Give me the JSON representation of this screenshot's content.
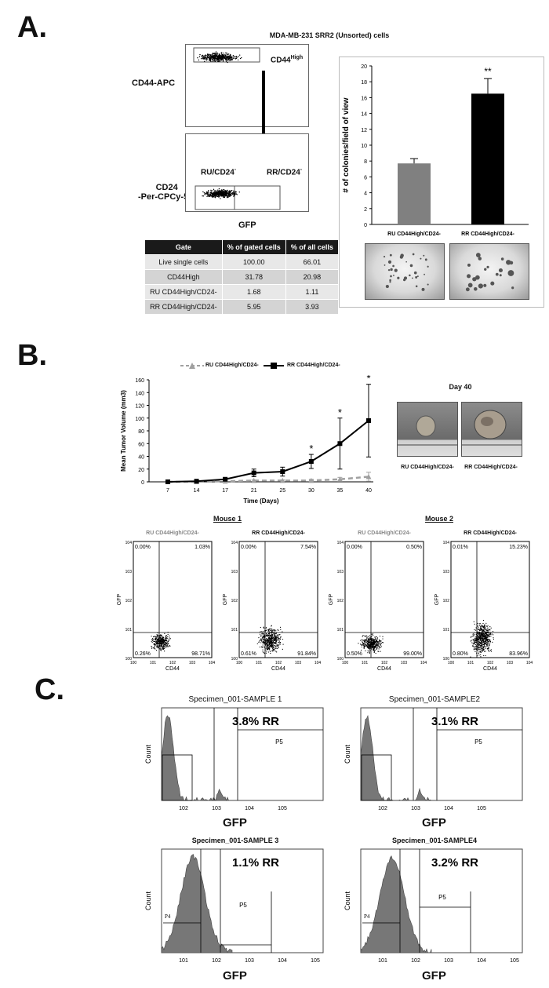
{
  "panelA": {
    "label": "A.",
    "title": "MDA-MB-231 SRR2 (Unsorted) cells",
    "cd44_axis": "CD44-APC",
    "cd24_axis_line1": "CD24",
    "cd24_axis_line2": "-Per-CPCy-5.5",
    "gate_cd44": "CD44",
    "gate_cd44_sup": "High",
    "gate_ru": "RU/CD24",
    "gate_rr": "RR/CD24",
    "minus": "-",
    "gfp": "GFP",
    "table": {
      "headers": [
        "Gate",
        "% of gated cells",
        "% of all cells"
      ],
      "rows": [
        [
          "Live single cells",
          "100.00",
          "66.01"
        ],
        [
          "CD44High",
          "31.78",
          "20.98"
        ],
        [
          "RU CD44High/CD24-",
          "1.68",
          "1.11"
        ],
        [
          "RR CD44High/CD24-",
          "5.95",
          "3.93"
        ]
      ]
    },
    "bar_ylabel": "# of colonies/field of view",
    "bar_sig": "**",
    "bar_xlabels": [
      "RU CD44High/CD24-",
      "RR CD44High/CD24-"
    ]
  },
  "panelB": {
    "label": "B.",
    "legend_ru": "RU CD44High/CD24-",
    "legend_rr": "RR CD44High/CD24-",
    "ylabel": "Mean Tumor Volume (mm3)",
    "xlabel": "Time (Days)",
    "day_label": "Day 40",
    "photo_ru": "RU CD44High/CD24-",
    "photo_rr": "RR CD44High/CD24-",
    "mouse1": "Mouse 1",
    "mouse2": "Mouse 2",
    "flow": [
      {
        "title": "RU CD44High/CD24-",
        "ul": "0.00%",
        "ur": "1.03%",
        "ll": "0.26%",
        "lr": "98.71%"
      },
      {
        "title": "RR CD44High/CD24-",
        "ul": "0.00%",
        "ur": "7.54%",
        "ll": "0.61%",
        "lr": "91.84%"
      },
      {
        "title": "RU CD44High/CD24-",
        "ul": "0.00%",
        "ur": "0.50%",
        "ll": "0.50%",
        "lr": "99.00%"
      },
      {
        "title": "RR CD44High/CD24-",
        "ul": "0.01%",
        "ur": "15.23%",
        "ll": "0.80%",
        "lr": "83.96%"
      }
    ],
    "flow_xlabel": "CD44",
    "flow_ylabel": "GFP"
  },
  "panelC": {
    "label": "C.",
    "histos": [
      {
        "title": "Specimen_001-SAMPLE 1",
        "pct": "3.8% RR",
        "gate": "P5"
      },
      {
        "title": "Specimen_001-SAMPLE2",
        "pct": "3.1% RR",
        "gate": "P5"
      },
      {
        "title": "Specimen_001-SAMPLE 3",
        "pct": "1.1% RR",
        "gate": "P5"
      },
      {
        "title": "Specimen_001-SAMPLE4",
        "pct": "3.2% RR",
        "gate": "P5"
      }
    ],
    "p4": "P4",
    "count": "Count",
    "gfp": "GFP"
  },
  "chart_data": [
    {
      "type": "bar",
      "categories": [
        "RU CD44High/CD24-",
        "RR CD44High/CD24-"
      ],
      "values": [
        7.7,
        16.5
      ],
      "errors": [
        0.6,
        1.9
      ],
      "colors": [
        "#808080",
        "#000000"
      ],
      "ylabel": "# of colonies/field of view",
      "ylim": [
        0,
        20
      ],
      "yticks": [
        0,
        2,
        4,
        6,
        8,
        10,
        12,
        14,
        16,
        18,
        20
      ]
    },
    {
      "type": "line",
      "x": [
        7,
        14,
        17,
        21,
        25,
        30,
        35,
        40
      ],
      "series": [
        {
          "name": "RU CD44High/CD24-",
          "values": [
            0,
            0,
            1,
            2,
            2,
            2,
            4,
            8
          ],
          "errors": [
            0,
            0,
            1,
            1,
            1,
            2,
            3,
            7
          ],
          "color": "#a0a0a0",
          "dashed": true
        },
        {
          "name": "RR CD44High/CD24-",
          "values": [
            0,
            1,
            4,
            14,
            16,
            32,
            60,
            96
          ],
          "errors": [
            0,
            1,
            2,
            6,
            7,
            11,
            40,
            57
          ],
          "color": "#000000",
          "dashed": false
        }
      ],
      "significant_x": [
        30,
        35,
        40
      ],
      "sig_marker": "*",
      "ylabel": "Mean Tumor Volume (mm3)",
      "xlabel": "Time (Days)",
      "ylim": [
        0,
        160
      ],
      "yticks": [
        0,
        20,
        40,
        60,
        80,
        100,
        120,
        140,
        160
      ]
    }
  ]
}
